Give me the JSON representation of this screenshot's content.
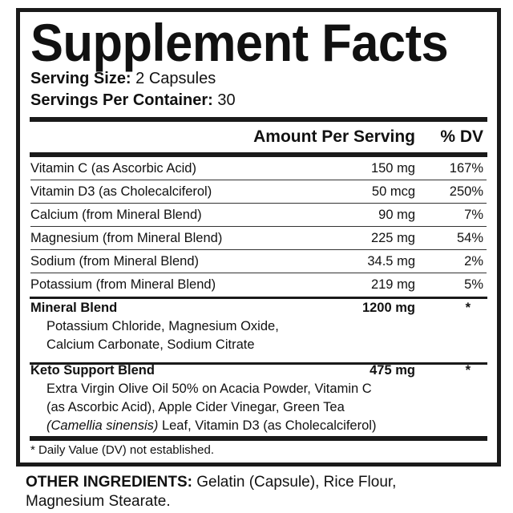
{
  "title": "Supplement Facts",
  "serving_size": {
    "label": "Serving Size:",
    "value": "2 Capsules"
  },
  "servings_per_container": {
    "label": "Servings Per Container:",
    "value": "30"
  },
  "columns": {
    "amount": "Amount Per Serving",
    "dv": "% DV"
  },
  "rows": [
    {
      "name": "Vitamin C (as Ascorbic Acid)",
      "amount": "150 mg",
      "dv": "167%"
    },
    {
      "name": "Vitamin D3 (as Cholecalciferol)",
      "amount": "50 mcg",
      "dv": "250%"
    },
    {
      "name": "Calcium (from Mineral Blend)",
      "amount": "90 mg",
      "dv": "7%"
    },
    {
      "name": "Magnesium (from Mineral Blend)",
      "amount": "225 mg",
      "dv": "54%"
    },
    {
      "name": "Sodium (from Mineral Blend)",
      "amount": "34.5 mg",
      "dv": "2%"
    },
    {
      "name": "Potassium (from Mineral Blend)",
      "amount": "219 mg",
      "dv": "5%"
    }
  ],
  "blends": [
    {
      "name": "Mineral Blend",
      "amount": "1200 mg",
      "dv": "*",
      "lines": [
        "Potassium Chloride, Magnesium Oxide,",
        "Calcium Carbonate, Sodium Citrate"
      ]
    },
    {
      "name": "Keto Support Blend",
      "amount": "475 mg",
      "dv": "*",
      "lines": [
        "Extra Virgin Olive Oil 50% on Acacia Powder, Vitamin C",
        "(as Ascorbic Acid), Apple Cider Vinegar, Green Tea"
      ],
      "last_line_italic": "(Camellia sinensis)",
      "last_line_rest": " Leaf, Vitamin D3 (as Cholecalciferol)"
    }
  ],
  "footnote": "* Daily Value (DV) not established.",
  "other_ingredients": {
    "label": "OTHER INGREDIENTS:",
    "line1": " Gelatin (Capsule), Rice Flour,",
    "line2": "Magnesium Stearate."
  }
}
